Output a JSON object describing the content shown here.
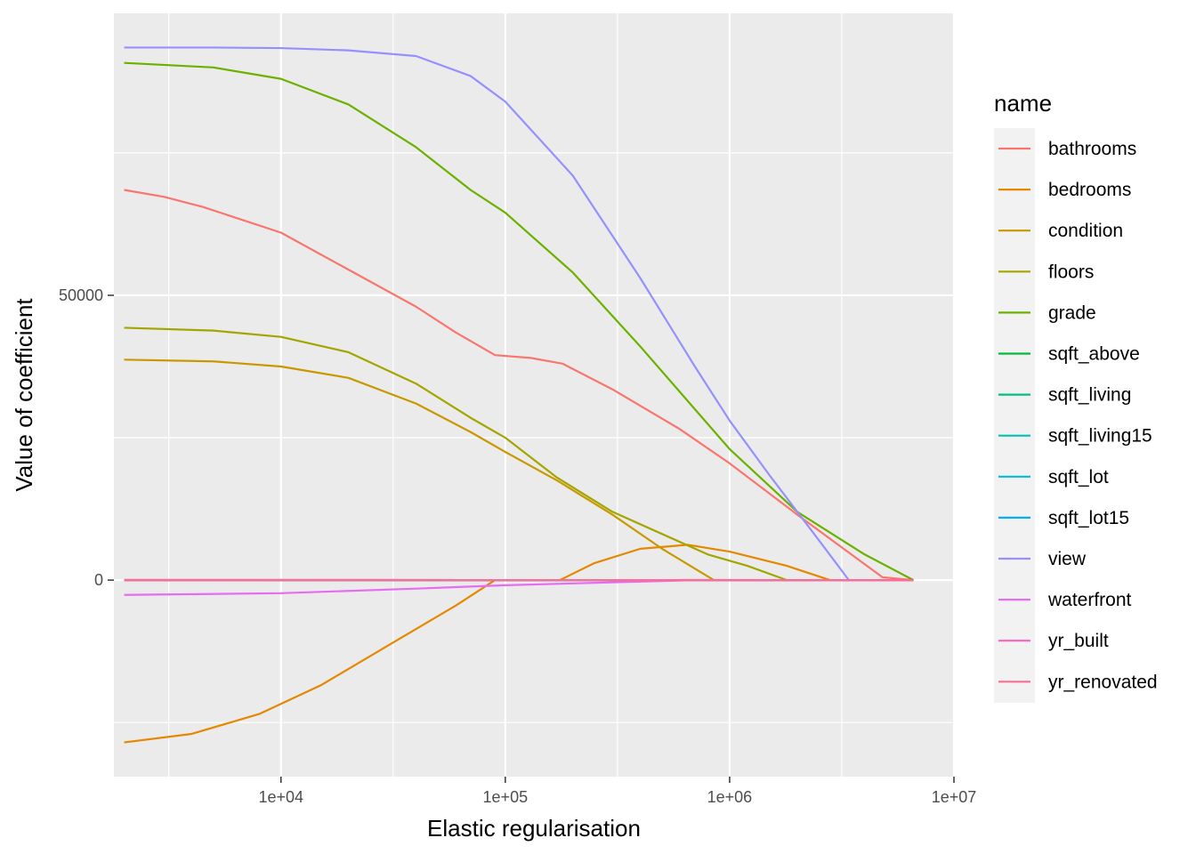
{
  "chart_data": {
    "type": "line",
    "title": "",
    "xlabel": "Elastic regularisation",
    "ylabel": "Value of coefficient",
    "x_scale": "log10",
    "xlim": [
      1800,
      10000000
    ],
    "ylim": [
      -34500,
      99500
    ],
    "x_ticks": [
      {
        "value": 10000,
        "label": "1e+04"
      },
      {
        "value": 100000,
        "label": "1e+05"
      },
      {
        "value": 1000000,
        "label": "1e+06"
      },
      {
        "value": 10000000,
        "label": "1e+07"
      }
    ],
    "y_ticks": [
      {
        "value": 0,
        "label": "0"
      },
      {
        "value": 50000,
        "label": "50000"
      }
    ],
    "grid": true,
    "legend": {
      "title": "name",
      "position": "right"
    },
    "series": [
      {
        "name": "bathrooms",
        "color": "#F8766D",
        "points": [
          [
            2000,
            68500
          ],
          [
            3000,
            67300
          ],
          [
            4500,
            65500
          ],
          [
            10000,
            61000
          ],
          [
            20000,
            54500
          ],
          [
            40000,
            48000
          ],
          [
            60000,
            43500
          ],
          [
            90000,
            39500
          ],
          [
            130000,
            39000
          ],
          [
            180000,
            38000
          ],
          [
            300000,
            33500
          ],
          [
            600000,
            26500
          ],
          [
            1000000,
            20500
          ],
          [
            2000000,
            11500
          ],
          [
            4800000,
            500
          ],
          [
            6600000,
            0
          ]
        ]
      },
      {
        "name": "bedrooms",
        "color": "#E58700",
        "points": [
          [
            2000,
            -28500
          ],
          [
            4000,
            -27000
          ],
          [
            8000,
            -23500
          ],
          [
            15000,
            -18500
          ],
          [
            30000,
            -11500
          ],
          [
            60000,
            -4500
          ],
          [
            90000,
            0
          ],
          [
            175000,
            0
          ],
          [
            250000,
            3000
          ],
          [
            400000,
            5500
          ],
          [
            650000,
            6200
          ],
          [
            1000000,
            5000
          ],
          [
            1800000,
            2500
          ],
          [
            2800000,
            0
          ],
          [
            6600000,
            0
          ]
        ]
      },
      {
        "name": "condition",
        "color": "#C99800",
        "points": [
          [
            2000,
            38700
          ],
          [
            5000,
            38400
          ],
          [
            10000,
            37500
          ],
          [
            20000,
            35500
          ],
          [
            40000,
            31000
          ],
          [
            70000,
            26000
          ],
          [
            100000,
            22500
          ],
          [
            170000,
            17500
          ],
          [
            300000,
            11500
          ],
          [
            500000,
            5500
          ],
          [
            850000,
            0
          ],
          [
            6600000,
            0
          ]
        ]
      },
      {
        "name": "floors",
        "color": "#A3A500",
        "points": [
          [
            2000,
            44300
          ],
          [
            5000,
            43800
          ],
          [
            10000,
            42700
          ],
          [
            20000,
            40000
          ],
          [
            40000,
            34500
          ],
          [
            70000,
            28500
          ],
          [
            100000,
            25000
          ],
          [
            170000,
            18000
          ],
          [
            300000,
            12000
          ],
          [
            800000,
            4500
          ],
          [
            1200000,
            2500
          ],
          [
            1800000,
            0
          ],
          [
            6600000,
            0
          ]
        ]
      },
      {
        "name": "grade",
        "color": "#6BB100",
        "points": [
          [
            2000,
            90800
          ],
          [
            5000,
            90000
          ],
          [
            10000,
            88000
          ],
          [
            20000,
            83500
          ],
          [
            40000,
            76000
          ],
          [
            70000,
            68500
          ],
          [
            100000,
            64500
          ],
          [
            200000,
            54000
          ],
          [
            400000,
            41000
          ],
          [
            700000,
            30000
          ],
          [
            1000000,
            23000
          ],
          [
            2000000,
            12000
          ],
          [
            4000000,
            4500
          ],
          [
            6600000,
            0
          ]
        ]
      },
      {
        "name": "sqft_above",
        "color": "#00BA38",
        "points": [
          [
            2000,
            0
          ],
          [
            6600000,
            0
          ]
        ]
      },
      {
        "name": "sqft_living",
        "color": "#00BF7D",
        "points": [
          [
            2000,
            0
          ],
          [
            6600000,
            0
          ]
        ]
      },
      {
        "name": "sqft_living15",
        "color": "#00C0AF",
        "points": [
          [
            2000,
            0
          ],
          [
            6600000,
            0
          ]
        ]
      },
      {
        "name": "sqft_lot",
        "color": "#00BCD8",
        "points": [
          [
            2000,
            0
          ],
          [
            6600000,
            0
          ]
        ]
      },
      {
        "name": "sqft_lot15",
        "color": "#00B0F6",
        "points": [
          [
            2000,
            0
          ],
          [
            6600000,
            0
          ]
        ]
      },
      {
        "name": "view",
        "color": "#9590FF",
        "points": [
          [
            2000,
            93500
          ],
          [
            5000,
            93500
          ],
          [
            10000,
            93400
          ],
          [
            20000,
            93000
          ],
          [
            40000,
            92000
          ],
          [
            70000,
            88500
          ],
          [
            100000,
            84000
          ],
          [
            200000,
            71000
          ],
          [
            400000,
            53000
          ],
          [
            700000,
            37500
          ],
          [
            1000000,
            28000
          ],
          [
            1500000,
            18500
          ],
          [
            2500000,
            7000
          ],
          [
            3400000,
            0
          ],
          [
            6600000,
            0
          ]
        ]
      },
      {
        "name": "waterfront",
        "color": "#E76BF3",
        "points": [
          [
            2000,
            -2600
          ],
          [
            10000,
            -2300
          ],
          [
            40000,
            -1500
          ],
          [
            100000,
            -900
          ],
          [
            300000,
            -400
          ],
          [
            700000,
            0
          ],
          [
            6600000,
            0
          ]
        ]
      },
      {
        "name": "yr_built",
        "color": "#FF62BC",
        "points": [
          [
            2000,
            -20
          ],
          [
            6600000,
            0
          ]
        ]
      },
      {
        "name": "yr_renovated",
        "color": "#FF6C91",
        "points": [
          [
            2000,
            40
          ],
          [
            6600000,
            0
          ]
        ]
      }
    ]
  }
}
